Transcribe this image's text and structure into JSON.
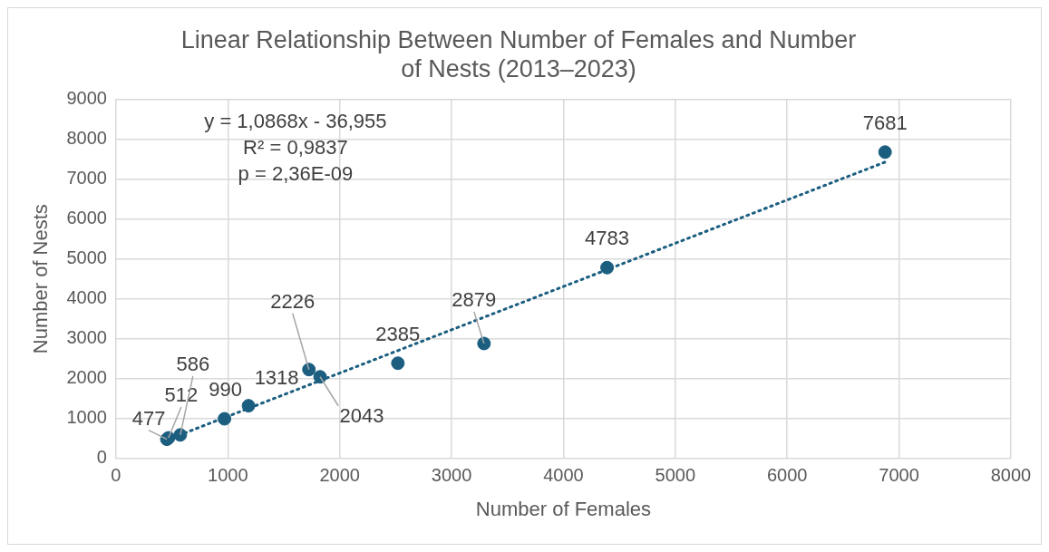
{
  "chart_data": {
    "type": "scatter",
    "title": "Linear Relationship Between Number of Females and Number of Nests (2013–2023)",
    "xlabel": "Number of Females",
    "ylabel": "Number of Nests",
    "series": [
      {
        "color": "#1b5e80",
        "x": [
          455,
          470,
          575,
          970,
          1185,
          1725,
          1825,
          2520,
          3290,
          4390,
          6875
        ],
        "values": [
          477,
          512,
          586,
          990,
          1318,
          2226,
          2043,
          2385,
          2879,
          4783,
          7681
        ],
        "value_labels": [
          "477",
          "512",
          "586",
          "990",
          "1318",
          "2226",
          "2043",
          "2385",
          "2879",
          "4783",
          "7681"
        ],
        "marker": "circle"
      },
      {
        "type": "line",
        "color": "#1b5e80",
        "x": [
          455,
          6875
        ],
        "values": [
          460,
          7430
        ],
        "line_style": "dotted",
        "marker": "none"
      }
    ],
    "annotations": [
      "y = 1,0868x - 36,955",
      "R² = 0,9837",
      "p = 2,36E-09"
    ],
    "xlim": [
      0,
      8000
    ],
    "xticks": [
      0,
      1000,
      2000,
      3000,
      4000,
      5000,
      6000,
      7000,
      8000
    ],
    "ylim": [
      0,
      9000
    ],
    "yticks": [
      0,
      1000,
      2000,
      3000,
      4000,
      5000,
      6000,
      7000,
      8000,
      9000
    ],
    "grid": true,
    "legend": false
  }
}
